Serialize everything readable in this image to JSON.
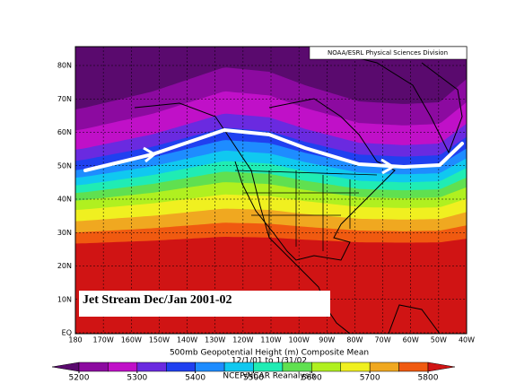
{
  "header": {
    "source": "NOAA/ESRL Physical Sciences Division"
  },
  "map": {
    "label": "Jet Stream Dec/Jan 2001-02",
    "lat_labels": [
      "80N",
      "70N",
      "60N",
      "50N",
      "40N",
      "30N",
      "20N",
      "10N",
      "EQ"
    ],
    "lon_labels": [
      "180",
      "170W",
      "160W",
      "150W",
      "140W",
      "130W",
      "120W",
      "110W",
      "100W",
      "90W",
      "80W",
      "70W",
      "60W",
      "50W",
      "40W"
    ]
  },
  "caption": {
    "title": "500mb Geopotential Height (m) Composite Mean",
    "dates": "12/1/01 to 1/31/02",
    "credit": "NCEP/NCAR Reanalysis"
  },
  "colorbar": {
    "ticks": [
      5200,
      5300,
      5400,
      5500,
      5600,
      5700,
      5800
    ],
    "colors": [
      "#5a0a6e",
      "#8c0aa0",
      "#c010c8",
      "#6a2ae0",
      "#2040f0",
      "#1e8cff",
      "#10c8f0",
      "#20ecb4",
      "#60e050",
      "#b0f020",
      "#f0f020",
      "#f0a820",
      "#f05a10",
      "#d01414"
    ]
  }
}
